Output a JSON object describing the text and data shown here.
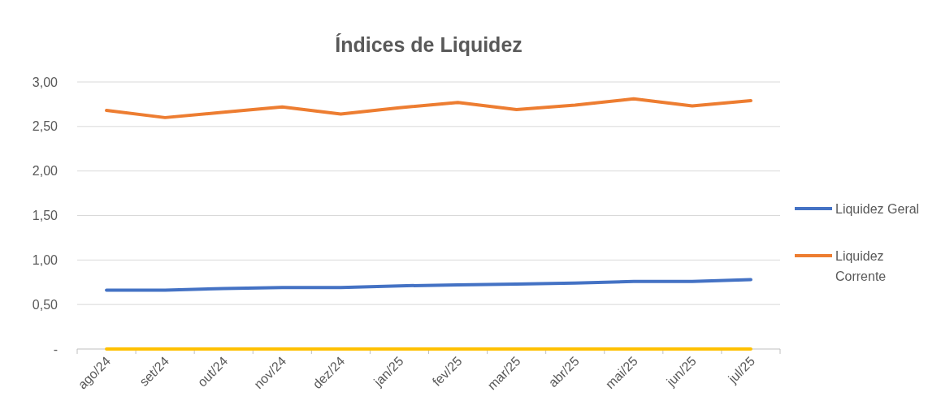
{
  "chart_data": {
    "type": "line",
    "title": "Índices de Liquidez",
    "categories": [
      "ago/24",
      "set/24",
      "out/24",
      "nov/24",
      "dez/24",
      "jan/25",
      "fev/25",
      "mar/25",
      "abr/25",
      "mai/25",
      "jun/25",
      "jul/25"
    ],
    "series": [
      {
        "name": "Liquidez Geral",
        "color": "#4472c4",
        "values": [
          0.66,
          0.66,
          0.68,
          0.69,
          0.69,
          0.71,
          0.72,
          0.73,
          0.74,
          0.76,
          0.76,
          0.78
        ]
      },
      {
        "name": "Liquidez Corrente",
        "color": "#ed7d31",
        "values": [
          2.68,
          2.6,
          2.66,
          2.72,
          2.64,
          2.71,
          2.77,
          2.69,
          2.74,
          2.81,
          2.73,
          2.79
        ]
      },
      {
        "color": "#ffc000",
        "values": [
          0,
          0,
          0,
          0,
          0,
          0,
          0,
          0,
          0,
          0,
          0,
          0
        ]
      }
    ],
    "ylim": [
      0,
      3
    ],
    "yticks": [
      {
        "value": 0,
        "label": "-"
      },
      {
        "value": 0.5,
        "label": "0,50"
      },
      {
        "value": 1,
        "label": "1,00"
      },
      {
        "value": 1.5,
        "label": "1,50"
      },
      {
        "value": 2,
        "label": "2,00"
      },
      {
        "value": 2.5,
        "label": "2,50"
      },
      {
        "value": 3,
        "label": "3,00"
      }
    ],
    "grid": "y",
    "legend": "right",
    "marker": "none",
    "line_style": "solid"
  }
}
